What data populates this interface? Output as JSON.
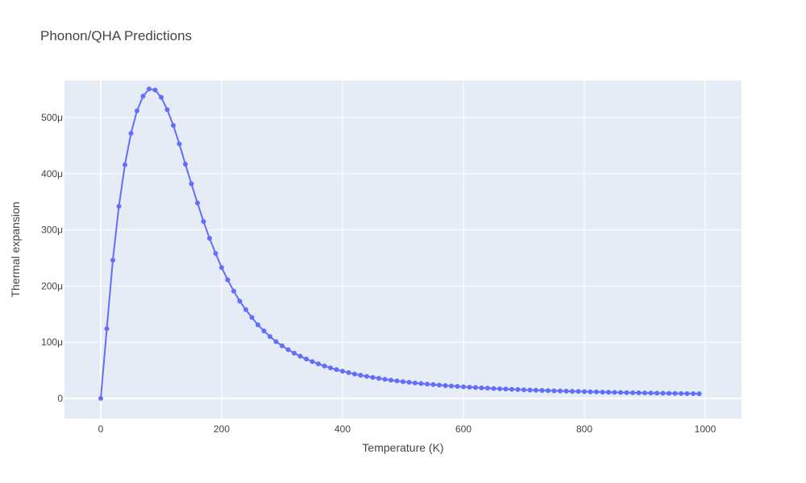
{
  "chart_data": {
    "type": "line",
    "title": "Phonon/QHA Predictions",
    "xlabel": "Temperature (K)",
    "ylabel": "Thermal expansion",
    "xlim": [
      -60,
      1060
    ],
    "ylim": [
      -3.6e-05,
      0.000566
    ],
    "x_ticks": [
      0,
      200,
      400,
      600,
      800,
      1000
    ],
    "x_tick_labels": [
      "0",
      "200",
      "400",
      "600",
      "800",
      "1000"
    ],
    "y_ticks": [
      0,
      0.0001,
      0.0002,
      0.0003,
      0.0004,
      0.0005
    ],
    "y_tick_labels": [
      "0",
      "100μ",
      "200μ",
      "300μ",
      "400μ",
      "500μ"
    ],
    "grid": true,
    "legend": "none",
    "colors": {
      "plot_bg": "#e5ecf6",
      "grid": "#ffffff",
      "series": "#636efa",
      "text": "#444444"
    },
    "series": [
      {
        "x": [
          0,
          10,
          20,
          30,
          40,
          50,
          60,
          70,
          80,
          90,
          100,
          110,
          120,
          130,
          140,
          150,
          160,
          170,
          180,
          190,
          200,
          210,
          220,
          230,
          240,
          250,
          260,
          270,
          280,
          290,
          300,
          310,
          320,
          330,
          340,
          350,
          360,
          370,
          380,
          390,
          400,
          410,
          420,
          430,
          440,
          450,
          460,
          470,
          480,
          490,
          500,
          510,
          520,
          530,
          540,
          550,
          560,
          570,
          580,
          590,
          600,
          610,
          620,
          630,
          640,
          650,
          660,
          670,
          680,
          690,
          700,
          710,
          720,
          730,
          740,
          750,
          760,
          770,
          780,
          790,
          800,
          810,
          820,
          830,
          840,
          850,
          860,
          870,
          880,
          890,
          900,
          910,
          920,
          930,
          940,
          950,
          960,
          970,
          980,
          990
        ],
        "y": [
          0,
          0.000124,
          0.000246,
          0.000342,
          0.000416,
          0.000472,
          0.000512,
          0.000538,
          0.000551,
          0.000549,
          0.000536,
          0.000514,
          0.000486,
          0.000453,
          0.000417,
          0.000382,
          0.000348,
          0.000315,
          0.000285,
          0.000258,
          0.000233,
          0.000211,
          0.000191,
          0.000173,
          0.000158,
          0.000144,
          0.000131,
          0.00012,
          0.00011,
          0.000101,
          9.36e-05,
          8.68e-05,
          8.06e-05,
          7.5e-05,
          7e-05,
          6.55e-05,
          6.14e-05,
          5.77e-05,
          5.43e-05,
          5.12e-05,
          4.84e-05,
          4.58e-05,
          4.34e-05,
          4.12e-05,
          3.92e-05,
          3.73e-05,
          3.56e-05,
          3.4e-05,
          3.25e-05,
          3.11e-05,
          2.98e-05,
          2.86e-05,
          2.75e-05,
          2.64e-05,
          2.54e-05,
          2.45e-05,
          2.36e-05,
          2.28e-05,
          2.2e-05,
          2.13e-05,
          2.06e-05,
          1.99e-05,
          1.93e-05,
          1.87e-05,
          1.82e-05,
          1.76e-05,
          1.71e-05,
          1.66e-05,
          1.62e-05,
          1.57e-05,
          1.53e-05,
          1.49e-05,
          1.45e-05,
          1.42e-05,
          1.38e-05,
          1.35e-05,
          1.32e-05,
          1.29e-05,
          1.26e-05,
          1.23e-05,
          1.2e-05,
          1.17e-05,
          1.15e-05,
          1.12e-05,
          1.1e-05,
          1.08e-05,
          1.05e-05,
          1.03e-05,
          1.01e-05,
          9.9e-06,
          9.7e-06,
          9.5e-06,
          9.3e-06,
          9.2e-06,
          9e-06,
          8.8e-06,
          8.7e-06,
          8.5e-06,
          8.4e-06,
          8.2e-06
        ]
      }
    ]
  }
}
